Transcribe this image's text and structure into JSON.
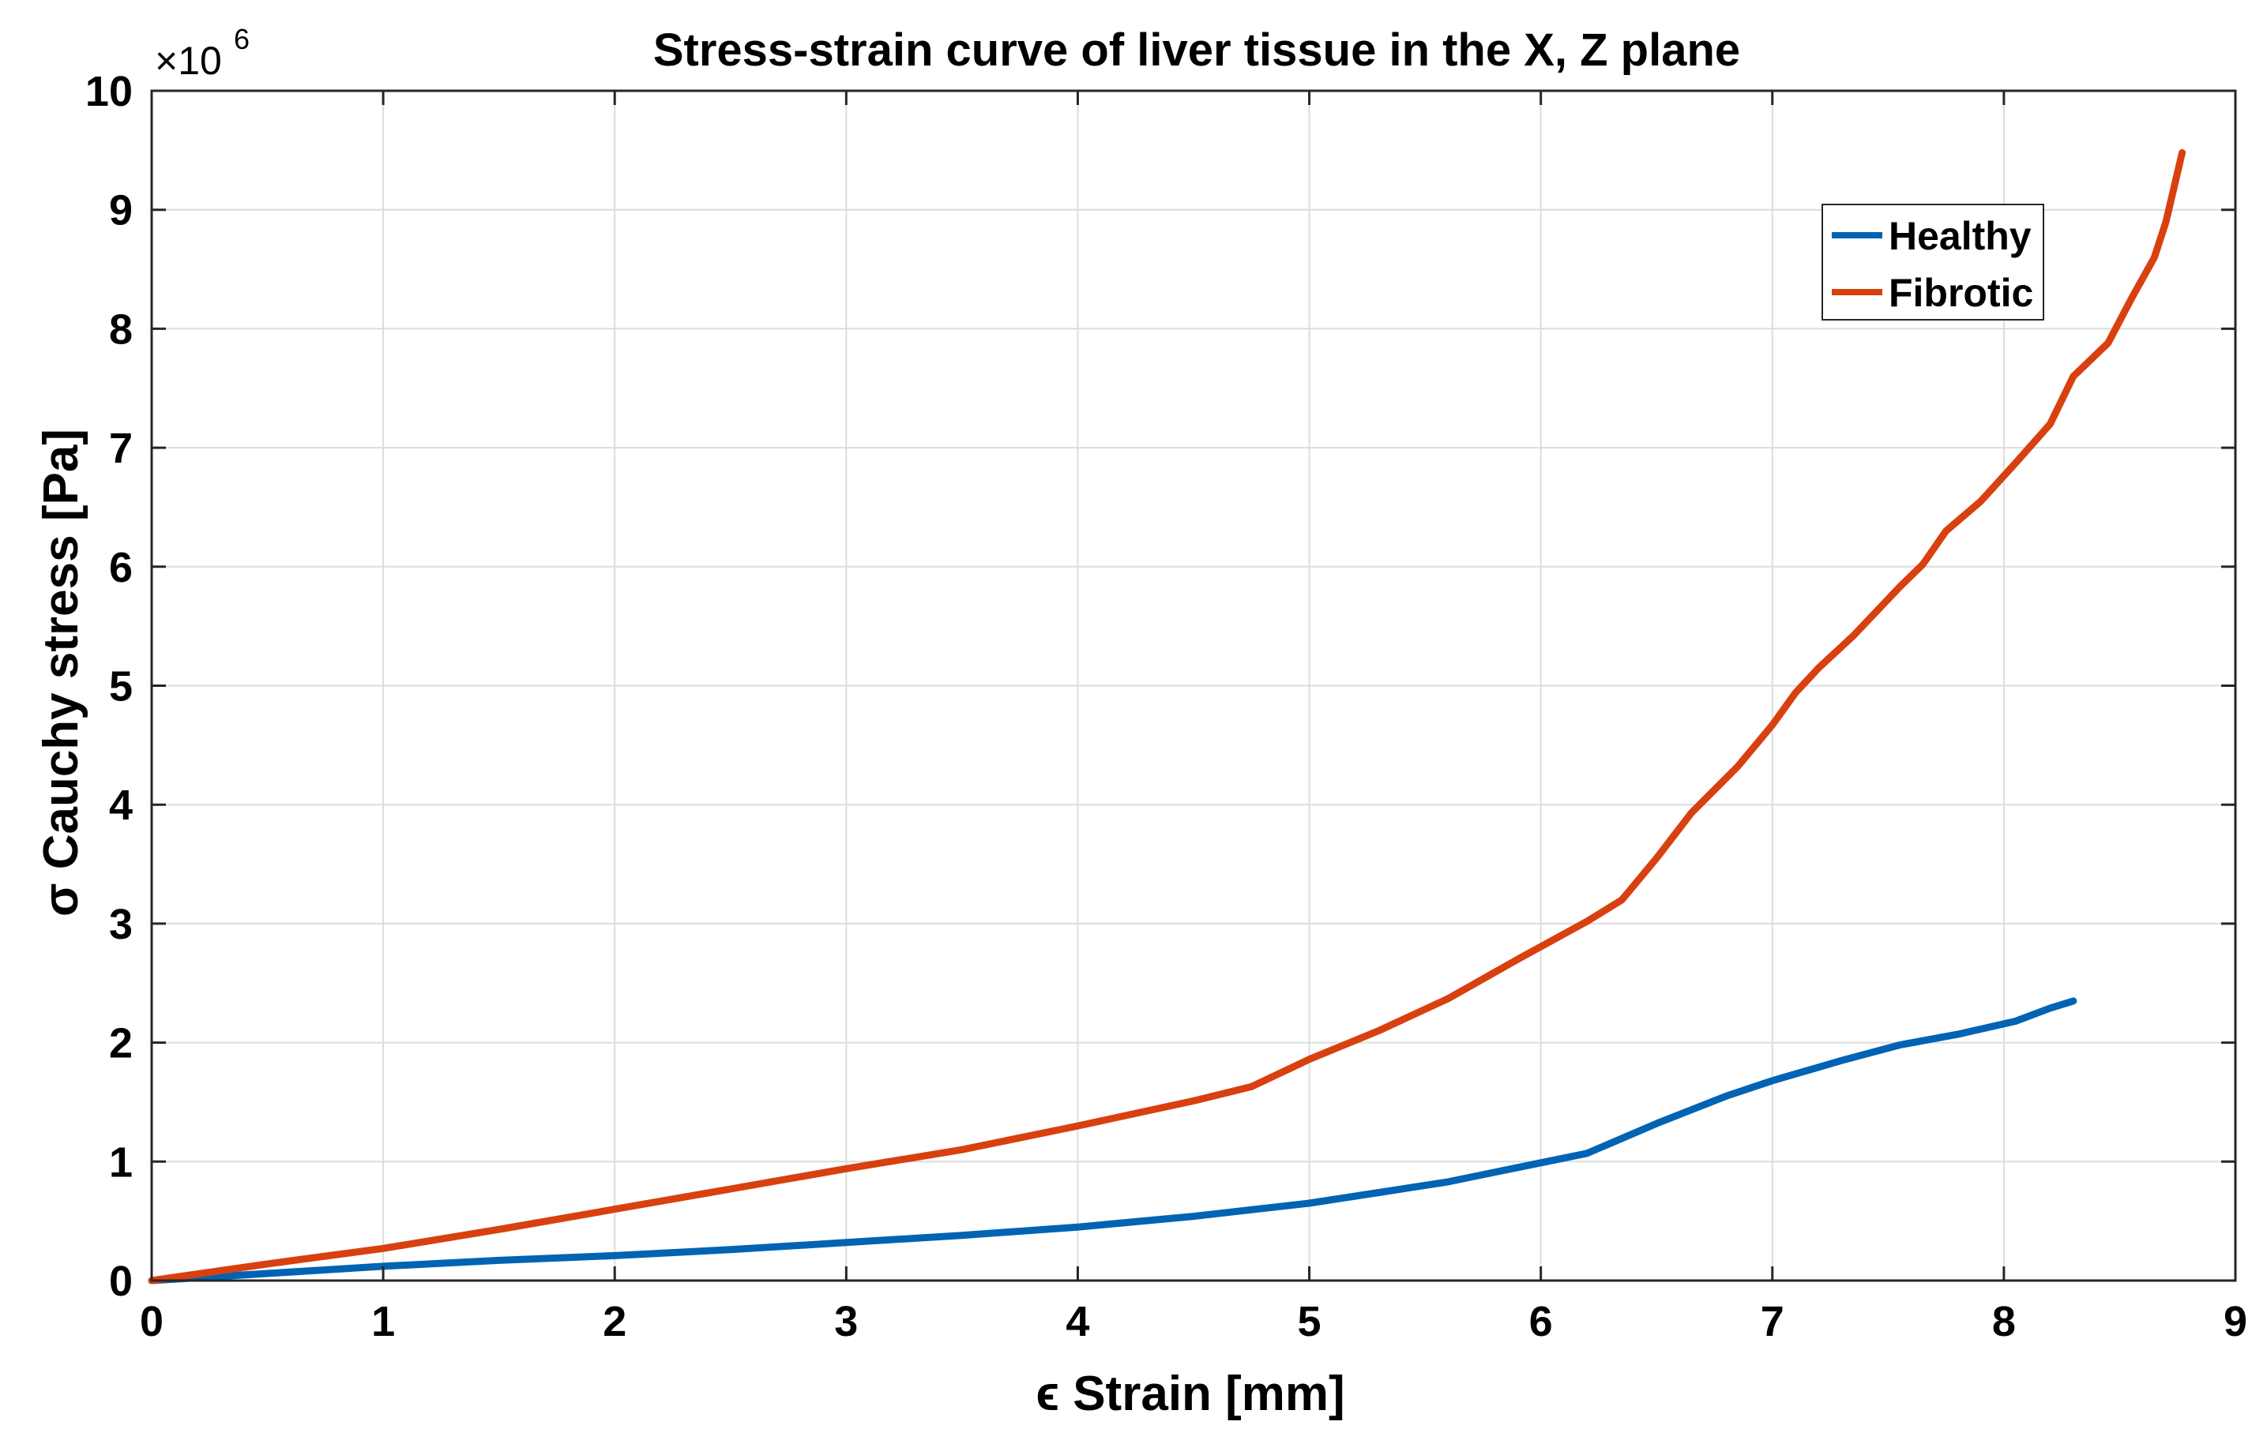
{
  "chart_data": {
    "type": "line",
    "title": "Stress-strain curve of liver tissue in the X, Z plane",
    "xlabel": "ϵ Strain [mm]",
    "ylabel": "σ Cauchy stress [Pa]",
    "y_exponent_label": "×10",
    "y_exponent_power": "6",
    "xlim": [
      0,
      9
    ],
    "ylim": [
      0,
      10
    ],
    "x_ticks": [
      "0",
      "1",
      "2",
      "3",
      "4",
      "5",
      "6",
      "7",
      "8",
      "9"
    ],
    "y_ticks": [
      "0",
      "1",
      "2",
      "3",
      "4",
      "5",
      "6",
      "7",
      "8",
      "9",
      "10"
    ],
    "grid": true,
    "legend_position": "top-right",
    "series": [
      {
        "name": "Healthy",
        "color": "#0063b3",
        "x": [
          0,
          0.5,
          1,
          1.5,
          2,
          2.5,
          3,
          3.5,
          4,
          4.5,
          5,
          5.3,
          5.6,
          5.9,
          6.2,
          6.5,
          6.8,
          7.0,
          7.3,
          7.55,
          7.8,
          8.05,
          8.2,
          8.3
        ],
        "y": [
          0,
          0.06,
          0.12,
          0.17,
          0.21,
          0.26,
          0.32,
          0.38,
          0.45,
          0.54,
          0.65,
          0.74,
          0.83,
          0.95,
          1.07,
          1.32,
          1.55,
          1.68,
          1.85,
          1.98,
          2.07,
          2.18,
          2.29,
          2.35
        ]
      },
      {
        "name": "Fibrotic",
        "color": "#d9400f",
        "x": [
          0,
          0.5,
          1,
          1.5,
          2,
          2.5,
          3,
          3.5,
          4,
          4.5,
          4.75,
          5,
          5.3,
          5.6,
          5.9,
          6.2,
          6.35,
          6.5,
          6.65,
          6.85,
          7.0,
          7.1,
          7.2,
          7.35,
          7.55,
          7.65,
          7.75,
          7.9,
          8.05,
          8.2,
          8.3,
          8.45,
          8.55,
          8.65,
          8.7,
          8.77
        ],
        "y": [
          0,
          0.14,
          0.27,
          0.43,
          0.6,
          0.77,
          0.94,
          1.1,
          1.3,
          1.51,
          1.63,
          1.86,
          2.1,
          2.37,
          2.7,
          3.02,
          3.2,
          3.55,
          3.93,
          4.32,
          4.67,
          4.94,
          5.15,
          5.42,
          5.83,
          6.02,
          6.3,
          6.55,
          6.87,
          7.2,
          7.6,
          7.88,
          8.25,
          8.6,
          8.9,
          9.48
        ]
      }
    ]
  }
}
